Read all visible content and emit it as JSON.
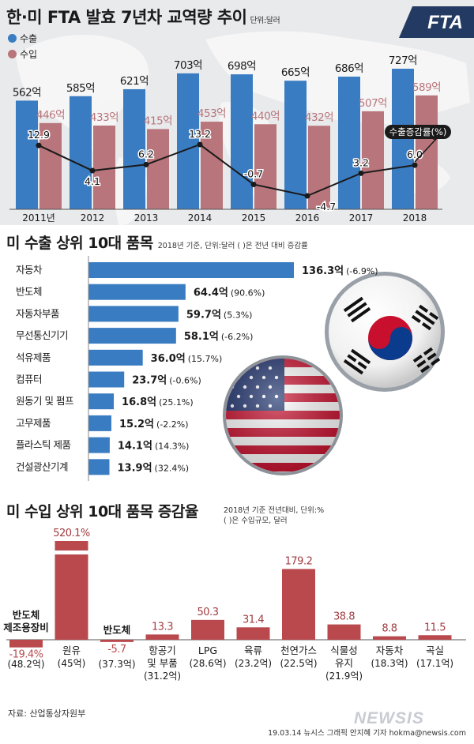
{
  "header": {
    "title": "한·미 FTA 발효 7년차 교역량 추이",
    "unit": "단위:달러",
    "legend": [
      {
        "label": "수출",
        "color": "#3a7cc2"
      },
      {
        "label": "수입",
        "color": "#b8757b"
      }
    ],
    "logo_text": "FTA",
    "rate_label": "수출증감률(%)"
  },
  "section2": {
    "title": "미 수출 상위 10대 품목",
    "note": "2018년 기준, 단위:달러 ( )은 전년 대비 증감률"
  },
  "section3": {
    "title": "미 수입 상위 10대 품목 증감율",
    "note_line1": "2018년 기준 전년대비, 단위:%",
    "note_line2": "( )은 수입규모, 달러"
  },
  "footer": {
    "source": "자료: 산업통상자원부",
    "credit": "19.03.14 뉴시스 그래픽 안지혜 기자 hokma@newsis.com",
    "watermark": "NEWSIS"
  },
  "chart_data": [
    {
      "type": "bar",
      "categories": [
        "2011년",
        "2012",
        "2013",
        "2014",
        "2015",
        "2016",
        "2017",
        "2018"
      ],
      "series": [
        {
          "name": "수출",
          "values": [
            562,
            585,
            621,
            703,
            698,
            665,
            686,
            727
          ],
          "labels": [
            "562억",
            "585억",
            "621억",
            "703억",
            "698억",
            "665억",
            "686억",
            "727억"
          ],
          "color": "#3a7cc2"
        },
        {
          "name": "수입",
          "values": [
            446,
            433,
            415,
            453,
            440,
            432,
            507,
            589
          ],
          "labels": [
            "446억",
            "433억",
            "415억",
            "453억",
            "440억",
            "432억",
            "507억",
            "589억"
          ],
          "color": "#b8757b"
        },
        {
          "name": "수출증감률(%)",
          "type": "line",
          "values": [
            12.9,
            4.1,
            6.2,
            13.2,
            -0.7,
            -4.7,
            3.2,
            6.0
          ],
          "labels": [
            "12.9",
            "4.1",
            "6.2",
            "13.2",
            "-0.7",
            "-4.7",
            "3.2",
            "6.0"
          ],
          "color": "#1a1a1a"
        }
      ]
    },
    {
      "type": "bar",
      "orientation": "horizontal",
      "categories": [
        "자동차",
        "반도체",
        "자동차부품",
        "무선통신기기",
        "석유제품",
        "컴퓨터",
        "원동기 및 펌프",
        "고무제품",
        "플라스틱 제품",
        "건설광산기계"
      ],
      "values": [
        136.3,
        64.4,
        59.7,
        58.1,
        36.0,
        23.7,
        16.8,
        15.2,
        14.1,
        13.9
      ],
      "value_labels": [
        "136.3억",
        "64.4억",
        "59.7억",
        "58.1억",
        "36.0억",
        "23.7억",
        "16.8억",
        "15.2억",
        "14.1억",
        "13.9억"
      ],
      "changes": [
        "(-6.9%)",
        "(90.6%)",
        "(5.3%)",
        "(-6.2%)",
        "(15.7%)",
        "(-0.6%)",
        "(25.1%)",
        "(-2.2%)",
        "(14.3%)",
        "(32.4%)"
      ],
      "color": "#3a7cc2"
    },
    {
      "type": "bar",
      "categories": [
        [
          "반도체",
          "제조용장비"
        ],
        [
          "원유"
        ],
        [
          "반도체"
        ],
        [
          "항공기",
          "및 부품"
        ],
        [
          "LPG"
        ],
        [
          "육류"
        ],
        [
          "천연가스"
        ],
        [
          "식물성",
          "유지"
        ],
        [
          "자동차"
        ],
        [
          "곡실"
        ]
      ],
      "values": [
        -19.4,
        520.1,
        -5.7,
        13.3,
        50.3,
        31.4,
        179.2,
        38.8,
        8.8,
        11.5
      ],
      "value_labels": [
        "-19.4%",
        "520.1%",
        "-5.7",
        "13.3",
        "50.3",
        "31.4",
        "179.2",
        "38.8",
        "8.8",
        "11.5"
      ],
      "sizes": [
        "(48.2억)",
        "(45억)",
        "(37.3억)",
        "(31.2억)",
        "(28.6억)",
        "(23.2억)",
        "(22.5억)",
        "(21.9억)",
        "(18.3억)",
        "(17.1억)"
      ],
      "color": "#b9494d"
    }
  ]
}
